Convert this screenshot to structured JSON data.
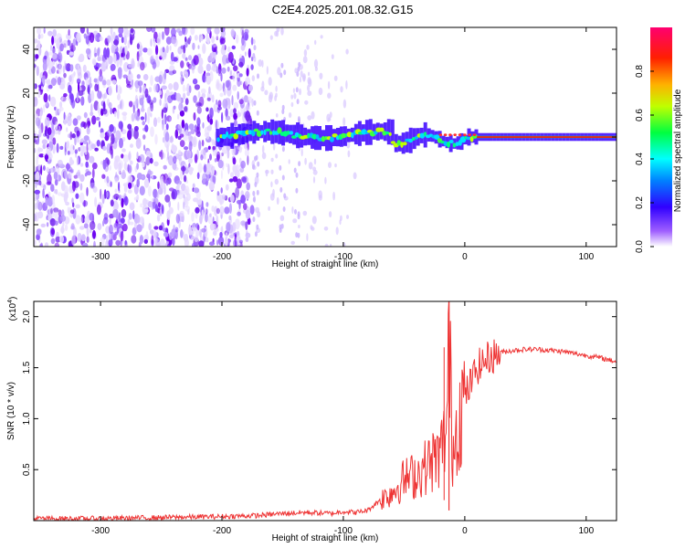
{
  "title": "C2E4.2025.201.08.32.G15",
  "chart_data": [
    {
      "type": "heatmap",
      "xlabel": "Height of straight line (km)",
      "ylabel": "Frequency (Hz)",
      "xlim": [
        -355,
        125
      ],
      "ylim": [
        -50,
        50
      ],
      "xticks": [
        -300,
        -200,
        -100,
        0,
        100
      ],
      "xtick_labels": [
        "-300",
        "-200",
        "-100",
        "0",
        "100"
      ],
      "yticks": [
        -40,
        -20,
        0,
        20,
        40
      ],
      "ytick_labels": [
        "-40",
        "-20",
        "0",
        "20",
        "40"
      ],
      "colorbar": {
        "label": "Normalized spectral amplitude",
        "range": [
          0,
          1
        ],
        "ticks": [
          0.0,
          0.2,
          0.4,
          0.6,
          0.8
        ],
        "tick_labels": [
          "0.0",
          "0.2",
          "0.4",
          "0.6",
          "0.8"
        ],
        "colormap": [
          "#ffffff",
          "#7f00ff",
          "#0000ff",
          "#00ffff",
          "#00ff00",
          "#ffff00",
          "#ff8000",
          "#ff0000",
          "#ff0080"
        ]
      },
      "features": {
        "noise_region_x": [
          -355,
          -175
        ],
        "sparse_noise_x": [
          -175,
          -90
        ],
        "band_start_x": -205,
        "strong_line_start_x": 10,
        "centre_frequency": 0
      }
    },
    {
      "type": "line",
      "xlabel": "Height of straight line (km)",
      "ylabel": "SNR (10 * v/v)",
      "y_multiplier": "(x10^4)",
      "xlim": [
        -355,
        125
      ],
      "ylim": [
        0,
        2.15
      ],
      "xticks": [
        -300,
        -200,
        -100,
        0,
        100
      ],
      "xtick_labels": [
        "-300",
        "-200",
        "-100",
        "0",
        "100"
      ],
      "yticks": [
        0.5,
        1.0,
        1.5,
        2.0
      ],
      "ytick_labels": [
        "0.5",
        "1.0",
        "1.5",
        "2.0"
      ],
      "color": "#ee3333",
      "x": [
        -355,
        -300,
        -250,
        -200,
        -170,
        -150,
        -130,
        -110,
        -100,
        -90,
        -80,
        -70,
        -60,
        -50,
        -40,
        -35,
        -30,
        -25,
        -20,
        -15,
        -13,
        -10,
        -5,
        0,
        10,
        20,
        30,
        40,
        50,
        60,
        70,
        80,
        90,
        100,
        110,
        125
      ],
      "y": [
        0.02,
        0.02,
        0.03,
        0.04,
        0.05,
        0.07,
        0.08,
        0.07,
        0.09,
        0.08,
        0.1,
        0.2,
        0.28,
        0.4,
        0.45,
        0.5,
        0.55,
        0.6,
        0.65,
        0.9,
        1.7,
        0.7,
        1.05,
        1.2,
        1.5,
        1.6,
        1.65,
        1.67,
        1.68,
        1.68,
        1.67,
        1.66,
        1.64,
        1.62,
        1.6,
        1.56
      ]
    }
  ],
  "colors": {
    "axis": "#000000",
    "signal": "#ee3333",
    "noise": "#8a2be2"
  }
}
